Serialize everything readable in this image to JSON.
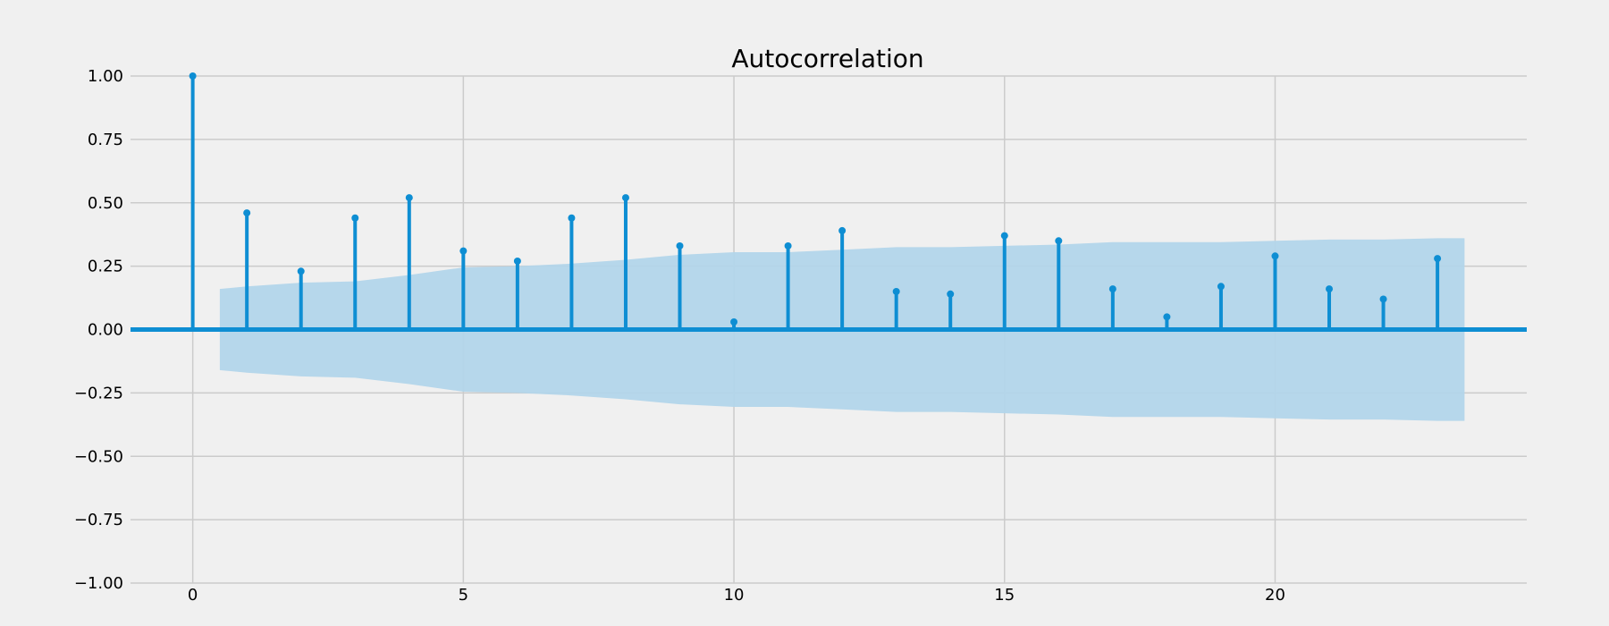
{
  "chart_data": {
    "type": "stem",
    "title": "Autocorrelation",
    "xlabel": "",
    "ylabel": "",
    "xlim": [
      -1.15,
      24.65
    ],
    "ylim": [
      -1.0,
      1.0
    ],
    "x_ticks": [
      0,
      5,
      10,
      15,
      20
    ],
    "x_tick_labels": [
      "0",
      "5",
      "10",
      "15",
      "20"
    ],
    "y_ticks": [
      1.0,
      0.75,
      0.5,
      0.25,
      0.0,
      -0.25,
      -0.5,
      -0.75,
      -1.0
    ],
    "y_tick_labels": [
      "1.00",
      "0.75",
      "0.50",
      "0.25",
      "0.00",
      "−0.25",
      "−0.50",
      "−0.75",
      "−1.00"
    ],
    "grid": true,
    "series": [
      {
        "lags": [
          0,
          1,
          2,
          3,
          4,
          5,
          6,
          7,
          8,
          9,
          10,
          11,
          12,
          13,
          14,
          15,
          16,
          17,
          18,
          19,
          20,
          21,
          22,
          23
        ],
        "values": [
          1.0,
          0.46,
          0.23,
          0.44,
          0.52,
          0.31,
          0.27,
          0.44,
          0.52,
          0.33,
          0.03,
          0.33,
          0.39,
          0.15,
          0.14,
          0.37,
          0.35,
          0.16,
          0.05,
          0.17,
          0.29,
          0.16,
          0.12,
          0.28
        ]
      }
    ],
    "confidence_band": {
      "x": [
        0.5,
        1,
        2,
        3,
        4,
        5,
        6,
        7,
        8,
        9,
        10,
        11,
        12,
        13,
        14,
        15,
        16,
        17,
        18,
        19,
        20,
        21,
        22,
        23,
        23.5
      ],
      "upper": [
        0.16,
        0.17,
        0.185,
        0.19,
        0.215,
        0.245,
        0.25,
        0.26,
        0.275,
        0.295,
        0.305,
        0.305,
        0.315,
        0.325,
        0.325,
        0.33,
        0.335,
        0.345,
        0.345,
        0.345,
        0.35,
        0.355,
        0.355,
        0.36,
        0.36
      ]
    },
    "colors": {
      "stem": "#0e8ed3",
      "band": "#b2d5ea",
      "grid": "#cbcbcb",
      "background": "#f0f0f0",
      "zero_line": "#0e8ed3"
    }
  }
}
